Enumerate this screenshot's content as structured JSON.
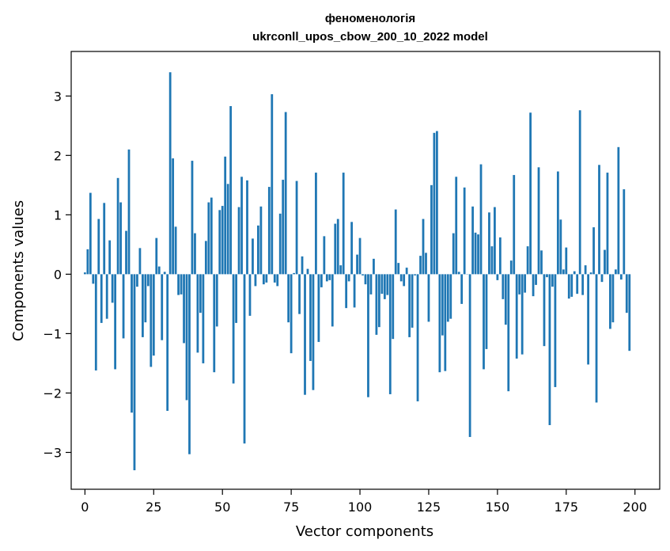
{
  "chart_data": {
    "type": "bar",
    "title_line1": "феноменологія",
    "title_line2": "ukrconll_upos_cbow_200_10_2022 model",
    "xlabel": "Vector components",
    "ylabel": "Components values",
    "xlim": [
      -5,
      209
    ],
    "ylim": [
      -3.62,
      3.75
    ],
    "xticks": [
      0,
      25,
      50,
      75,
      100,
      125,
      150,
      175,
      200
    ],
    "yticks": [
      -3,
      -2,
      -1,
      0,
      1,
      2,
      3
    ],
    "ytick_labels": [
      "−3",
      "−2",
      "−1",
      "0",
      "1",
      "2",
      "3"
    ],
    "grid": false,
    "bar_color": "#1f77b4",
    "values": [
      0.03,
      0.42,
      1.37,
      -0.16,
      -1.62,
      0.93,
      -0.82,
      1.2,
      -0.75,
      0.57,
      -0.48,
      -1.6,
      1.62,
      1.21,
      -1.08,
      0.73,
      2.1,
      -2.33,
      -3.3,
      -0.21,
      0.44,
      -1.06,
      -0.81,
      -0.2,
      -1.56,
      -1.37,
      0.61,
      0.13,
      -1.11,
      0.04,
      -2.3,
      3.4,
      1.95,
      0.8,
      -0.35,
      -0.34,
      -1.16,
      -2.12,
      -3.03,
      1.91,
      0.69,
      -1.32,
      -0.65,
      -1.5,
      0.56,
      1.21,
      1.29,
      -1.65,
      -0.88,
      1.08,
      1.15,
      1.98,
      1.52,
      2.83,
      -1.84,
      -0.82,
      1.13,
      1.64,
      -2.85,
      1.58,
      -0.7,
      0.6,
      -0.2,
      0.82,
      1.14,
      -0.17,
      -0.14,
      1.47,
      3.03,
      -0.14,
      -0.2,
      1.02,
      1.59,
      2.73,
      -0.81,
      -1.33,
      0.02,
      1.57,
      -0.67,
      0.3,
      -2.03,
      0.09,
      -1.46,
      -1.95,
      1.71,
      -1.14,
      -0.22,
      0.64,
      -0.12,
      -0.1,
      -0.88,
      0.85,
      0.93,
      0.15,
      1.71,
      -0.57,
      -0.12,
      0.88,
      -0.56,
      0.33,
      0.61,
      -0.02,
      -0.17,
      -2.07,
      -0.34,
      0.26,
      -1.02,
      -0.89,
      -0.33,
      -0.42,
      -0.35,
      -2.02,
      -1.09,
      1.09,
      0.19,
      -0.12,
      -0.2,
      0.11,
      -1.06,
      -0.9,
      -0.02,
      -2.14,
      0.31,
      0.93,
      0.36,
      -0.8,
      1.5,
      2.38,
      2.41,
      -1.65,
      -1.03,
      -1.63,
      -0.8,
      -0.75,
      0.69,
      1.64,
      0.04,
      -0.5,
      1.46,
      0.0,
      -2.74,
      1.14,
      0.7,
      0.67,
      1.85,
      -1.6,
      -1.26,
      1.04,
      0.47,
      1.13,
      -0.1,
      0.62,
      -0.42,
      -0.85,
      -1.97,
      0.23,
      1.67,
      -1.42,
      -0.34,
      -1.35,
      -0.31,
      0.47,
      2.72,
      -0.37,
      -0.18,
      1.8,
      0.4,
      -1.21,
      -0.05,
      -2.54,
      -0.21,
      -1.9,
      1.73,
      0.92,
      0.08,
      0.45,
      -0.41,
      -0.38,
      0.05,
      -0.33,
      2.76,
      -0.35,
      0.15,
      -1.52,
      0.03,
      0.79,
      -2.16,
      1.84,
      -0.13,
      0.41,
      1.71,
      -0.92,
      -0.81,
      0.08,
      2.14,
      -0.09,
      1.43,
      -0.65,
      -1.29
    ]
  }
}
